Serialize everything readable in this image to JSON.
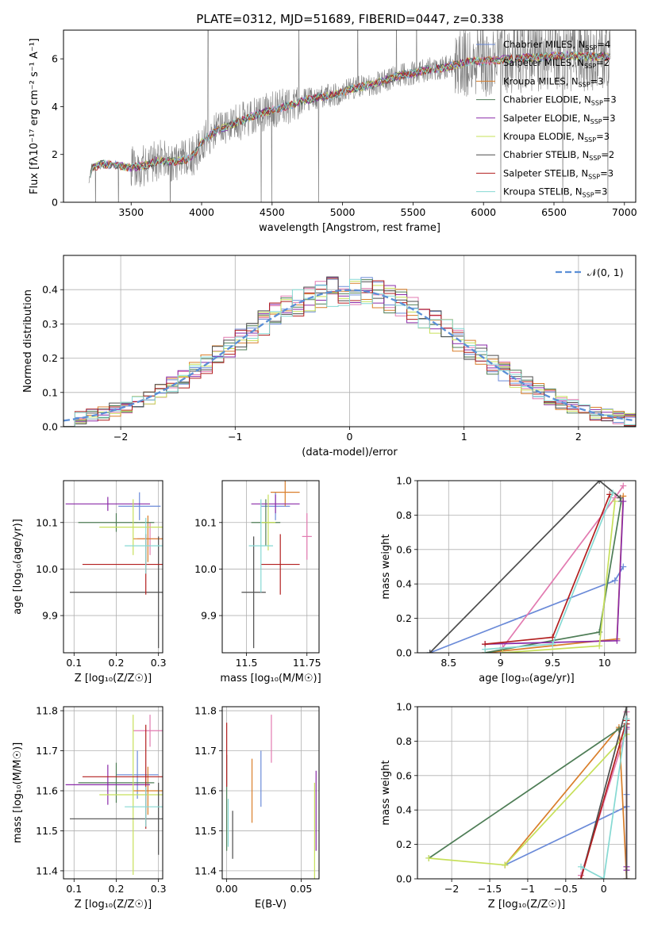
{
  "figure_title": "PLATE=0312, MJD=51689, FIBERID=0447, z=0.338",
  "colors": {
    "models": [
      "#6a8ad8",
      "#e27ab0",
      "#d97e2a",
      "#4e7d56",
      "#8a2aa8",
      "#c7e05a",
      "#4d4d4d",
      "#b21f1f",
      "#86d9d3"
    ],
    "data_spectrum": "#7f7f7f",
    "normal_curve": "#5b8fd6",
    "grid": "#b0b0b0"
  },
  "chart_data": [
    {
      "id": "spectrum",
      "type": "line",
      "title": "PLATE=0312, MJD=51689, FIBERID=0447, z=0.338",
      "xlabel": "wavelength [Angstrom, rest frame]",
      "ylabel": "Flux [fλ10⁻¹⁷ erg cm⁻² s⁻¹ A⁻¹]",
      "xlim": [
        3020,
        7080
      ],
      "ylim": [
        0,
        7.2
      ],
      "xticks": [
        3500,
        4000,
        4500,
        5000,
        5500,
        6000,
        6500,
        7000
      ],
      "yticks": [
        0,
        2,
        4,
        6
      ],
      "grid": false,
      "legend_position": "right",
      "legend": [
        {
          "label": "Chabrier MILES, N",
          "sub": "SSP",
          "suffix": "=4"
        },
        {
          "label": "Salpeter MILES, N",
          "sub": "SSP",
          "suffix": "=2"
        },
        {
          "label": "Kroupa MILES, N",
          "sub": "SSP",
          "suffix": "=3"
        },
        {
          "label": "Chabrier ELODIE, N",
          "sub": "SSP",
          "suffix": "=3"
        },
        {
          "label": "Salpeter ELODIE, N",
          "sub": "SSP",
          "suffix": "=3"
        },
        {
          "label": "Kroupa ELODIE, N",
          "sub": "SSP",
          "suffix": "=3"
        },
        {
          "label": "Chabrier STELIB, N",
          "sub": "SSP",
          "suffix": "=2"
        },
        {
          "label": "Salpeter STELIB, N",
          "sub": "SSP",
          "suffix": "=3"
        },
        {
          "label": "Kroupa STELIB, N",
          "sub": "SSP",
          "suffix": "=3"
        }
      ],
      "continuum": {
        "x": [
          3200,
          3220,
          3300,
          3400,
          3500,
          3600,
          3700,
          3800,
          3900,
          3950,
          4000,
          4100,
          4200,
          4300,
          4400,
          4500,
          4600,
          4700,
          4800,
          4900,
          5000,
          5100,
          5200,
          5300,
          5400,
          5500,
          5600,
          5700,
          5800,
          5900,
          6000,
          6100,
          6200,
          6300,
          6400,
          6500,
          6600,
          6700,
          6800,
          6900
        ],
        "y": [
          0.95,
          1.45,
          1.6,
          1.55,
          1.45,
          1.55,
          1.75,
          1.7,
          1.8,
          2.0,
          2.5,
          3.0,
          3.2,
          3.45,
          3.7,
          3.85,
          4.0,
          4.2,
          4.35,
          4.45,
          4.6,
          4.8,
          4.9,
          5.1,
          5.3,
          5.4,
          5.55,
          5.6,
          5.75,
          5.9,
          5.9,
          5.95,
          6.0,
          6.05,
          6.05,
          6.1,
          6.15,
          6.1,
          6.1,
          6.1
        ]
      },
      "data_noise_amplitude": [
        {
          "x_from": 3200,
          "x_to": 3500,
          "amp": 0.15
        },
        {
          "x_from": 3500,
          "x_to": 4000,
          "amp": 0.9
        },
        {
          "x_from": 4000,
          "x_to": 4700,
          "amp": 0.8
        },
        {
          "x_from": 4700,
          "x_to": 5800,
          "amp": 0.5
        },
        {
          "x_from": 5800,
          "x_to": 6900,
          "amp": 1.5
        }
      ]
    },
    {
      "id": "residuals",
      "type": "bar",
      "xlabel": "(data-model)/error",
      "ylabel": "Normed distribution",
      "xlim": [
        -2.5,
        2.5
      ],
      "ylim": [
        0,
        0.5
      ],
      "xticks": [
        -2,
        -1,
        0,
        1,
        2
      ],
      "yticks": [
        0.0,
        0.1,
        0.2,
        0.3,
        0.4
      ],
      "grid": true,
      "legend_position": "top-right",
      "reference_curve": {
        "label": "𝒩(0, 1)",
        "mean": 0,
        "sigma": 1
      },
      "bins": {
        "start": -2.5,
        "width": 0.1,
        "count": 50
      },
      "series_jitter_seed": 7,
      "series_jitter_amp": 0.045
    },
    {
      "id": "age_vs_Z",
      "type": "scatter",
      "xlabel": "Z [log₁₀(Z/Z☉)]",
      "ylabel": "age  [log₁₀(age/yr)]",
      "xlim": [
        0.075,
        0.31
      ],
      "ylim": [
        9.82,
        10.19
      ],
      "xticks": [
        0.1,
        0.2,
        0.3
      ],
      "yticks": [
        9.9,
        10.0,
        10.1
      ],
      "grid": true,
      "crosses": [
        {
          "series": 0,
          "x": 0.255,
          "y": 10.135,
          "xerr": 0.05,
          "yerr": 0.03
        },
        {
          "series": 1,
          "x": 0.28,
          "y": 10.065,
          "xerr": 0.03,
          "yerr": 0.035
        },
        {
          "series": 2,
          "x": 0.275,
          "y": 10.065,
          "xerr": 0.035,
          "yerr": 0.05
        },
        {
          "series": 3,
          "x": 0.2,
          "y": 10.1,
          "xerr": 0.09,
          "yerr": 0.02
        },
        {
          "series": 4,
          "x": 0.18,
          "y": 10.14,
          "xerr": 0.1,
          "yerr": 0.015
        },
        {
          "series": 5,
          "x": 0.24,
          "y": 10.09,
          "xerr": 0.08,
          "yerr": 0.06
        },
        {
          "series": 6,
          "x": 0.3,
          "y": 9.95,
          "xerr": 0.21,
          "yerr": 0.12
        },
        {
          "series": 7,
          "x": 0.27,
          "y": 10.01,
          "xerr": 0.15,
          "yerr": 0.065
        },
        {
          "series": 8,
          "x": 0.27,
          "y": 10.05,
          "xerr": 0.05,
          "yerr": 0.06
        }
      ]
    },
    {
      "id": "age_vs_mass",
      "type": "scatter",
      "xlabel": "mass [log₁₀(M/M☉)]",
      "ylabel": "",
      "xlim": [
        11.4,
        11.8
      ],
      "ylim": [
        9.82,
        10.19
      ],
      "xticks": [
        11.5,
        11.75
      ],
      "yticks": [
        9.9,
        10.0,
        10.1
      ],
      "grid": true,
      "crosses": [
        {
          "series": 0,
          "x": 11.62,
          "y": 10.135,
          "xerr": 0.06,
          "yerr": 0.03
        },
        {
          "series": 1,
          "x": 11.75,
          "y": 10.07,
          "xerr": 0.02,
          "yerr": 0.05
        },
        {
          "series": 2,
          "x": 11.66,
          "y": 10.165,
          "xerr": 0.06,
          "yerr": 0.03
        },
        {
          "series": 3,
          "x": 11.58,
          "y": 10.1,
          "xerr": 0.06,
          "yerr": 0.05
        },
        {
          "series": 4,
          "x": 11.62,
          "y": 10.14,
          "xerr": 0.1,
          "yerr": 0.02
        },
        {
          "series": 5,
          "x": 11.59,
          "y": 10.1,
          "xerr": 0.03,
          "yerr": 0.06
        },
        {
          "series": 6,
          "x": 11.53,
          "y": 9.95,
          "xerr": 0.05,
          "yerr": 0.12
        },
        {
          "series": 7,
          "x": 11.64,
          "y": 10.01,
          "xerr": 0.08,
          "yerr": 0.065
        },
        {
          "series": 8,
          "x": 11.56,
          "y": 10.05,
          "xerr": 0.05,
          "yerr": 0.1
        }
      ]
    },
    {
      "id": "mass_weight_vs_age",
      "type": "line",
      "xlabel": "age  [log₁₀(age/yr)]",
      "ylabel": "mass weight",
      "xlim": [
        8.2,
        10.3
      ],
      "ylim": [
        0,
        1.0
      ],
      "xticks": [
        8.5,
        9.0,
        9.5,
        10.0
      ],
      "yticks": [
        0.0,
        0.2,
        0.4,
        0.6,
        0.8,
        1.0
      ],
      "grid": true,
      "series": [
        {
          "x": [
            8.32,
            10.1,
            10.18
          ],
          "y": [
            0.0,
            0.42,
            0.5
          ]
        },
        {
          "x": [
            9.02,
            10.1,
            10.18
          ],
          "y": [
            0.03,
            0.9,
            0.97
          ]
        },
        {
          "x": [
            8.85,
            10.12,
            10.18
          ],
          "y": [
            0.0,
            0.08,
            0.91
          ]
        },
        {
          "x": [
            8.85,
            9.95,
            10.16
          ],
          "y": [
            0.0,
            0.12,
            0.88
          ]
        },
        {
          "x": [
            8.85,
            10.12,
            10.18
          ],
          "y": [
            0.05,
            0.07,
            0.88
          ]
        },
        {
          "x": [
            9.02,
            9.95,
            10.1
          ],
          "y": [
            0.0,
            0.04,
            0.88
          ]
        },
        {
          "x": [
            8.32,
            9.95,
            10.15
          ],
          "y": [
            0.0,
            1.0,
            0.9
          ]
        },
        {
          "x": [
            8.85,
            9.5,
            10.05
          ],
          "y": [
            0.05,
            0.09,
            0.92
          ]
        },
        {
          "x": [
            8.85,
            9.5,
            10.08
          ],
          "y": [
            0.02,
            0.05,
            0.93
          ]
        }
      ]
    },
    {
      "id": "mass_vs_Z",
      "type": "scatter",
      "xlabel": "Z [log₁₀(Z/Z☉)]",
      "ylabel": "mass [log₁₀(M/M☉)]",
      "xlim": [
        0.075,
        0.31
      ],
      "ylim": [
        11.38,
        11.81
      ],
      "xticks": [
        0.1,
        0.2,
        0.3
      ],
      "yticks": [
        11.4,
        11.5,
        11.6,
        11.7,
        11.8
      ],
      "grid": true,
      "crosses": [
        {
          "series": 0,
          "x": 0.25,
          "y": 11.64,
          "xerr": 0.05,
          "yerr": 0.06
        },
        {
          "series": 1,
          "x": 0.28,
          "y": 11.75,
          "xerr": 0.04,
          "yerr": 0.04
        },
        {
          "series": 2,
          "x": 0.275,
          "y": 11.6,
          "xerr": 0.035,
          "yerr": 0.06
        },
        {
          "series": 3,
          "x": 0.2,
          "y": 11.62,
          "xerr": 0.09,
          "yerr": 0.05
        },
        {
          "series": 4,
          "x": 0.18,
          "y": 11.615,
          "xerr": 0.1,
          "yerr": 0.05
        },
        {
          "series": 5,
          "x": 0.24,
          "y": 11.59,
          "xerr": 0.08,
          "yerr": 0.2
        },
        {
          "series": 6,
          "x": 0.3,
          "y": 11.53,
          "xerr": 0.21,
          "yerr": 0.09
        },
        {
          "series": 7,
          "x": 0.27,
          "y": 11.635,
          "xerr": 0.15,
          "yerr": 0.13
        },
        {
          "series": 8,
          "x": 0.27,
          "y": 11.56,
          "xerr": 0.05,
          "yerr": 0.05
        }
      ]
    },
    {
      "id": "mass_vs_ebv",
      "type": "scatter",
      "xlabel": "E(B-V)",
      "ylabel": "",
      "xlim": [
        -0.003,
        0.062
      ],
      "ylim": [
        11.38,
        11.81
      ],
      "xticks": [
        0.0,
        0.05
      ],
      "yticks": [
        11.4,
        11.5,
        11.6,
        11.7,
        11.8
      ],
      "grid": true,
      "crosses": [
        {
          "series": 0,
          "x": 0.023,
          "y": 11.63,
          "xerr": 0.0,
          "yerr": 0.07
        },
        {
          "series": 1,
          "x": 0.03,
          "y": 11.73,
          "xerr": 0.0,
          "yerr": 0.06
        },
        {
          "series": 2,
          "x": 0.017,
          "y": 11.6,
          "xerr": 0.0,
          "yerr": 0.08
        },
        {
          "series": 3,
          "x": 0.0,
          "y": 11.57,
          "xerr": 0.0,
          "yerr": 0.12
        },
        {
          "series": 4,
          "x": 0.06,
          "y": 11.55,
          "xerr": 0.0,
          "yerr": 0.1
        },
        {
          "series": 5,
          "x": 0.059,
          "y": 11.5,
          "xerr": 0.0,
          "yerr": 0.12
        },
        {
          "series": 6,
          "x": 0.004,
          "y": 11.49,
          "xerr": 0.0,
          "yerr": 0.06
        },
        {
          "series": 7,
          "x": 0.0,
          "y": 11.69,
          "xerr": 0.0,
          "yerr": 0.08
        },
        {
          "series": 8,
          "x": 0.001,
          "y": 11.52,
          "xerr": 0.0,
          "yerr": 0.06
        }
      ]
    },
    {
      "id": "mass_weight_vs_Z",
      "type": "line",
      "xlabel": "Z [log₁₀(Z/Z☉)]",
      "ylabel": "mass weight",
      "xlim": [
        -2.45,
        0.42
      ],
      "ylim": [
        0,
        1.0
      ],
      "xticks": [
        -2.0,
        -1.5,
        -1.0,
        -0.5,
        0.0
      ],
      "yticks": [
        0.0,
        0.2,
        0.4,
        0.6,
        0.8,
        1.0
      ],
      "grid": true,
      "series": [
        {
          "x": [
            -1.3,
            0.3,
            0.3
          ],
          "y": [
            0.08,
            0.42,
            0.49
          ]
        },
        {
          "x": [
            -0.3,
            0.3,
            0.3
          ],
          "y": [
            0.02,
            0.87,
            0.97
          ]
        },
        {
          "x": [
            -1.3,
            0.2,
            0.3
          ],
          "y": [
            0.08,
            0.88,
            0.0
          ]
        },
        {
          "x": [
            -2.3,
            0.2,
            0.3
          ],
          "y": [
            0.12,
            0.87,
            0.9
          ]
        },
        {
          "x": [
            0.3,
            0.3,
            0.3
          ],
          "y": [
            0.05,
            0.07,
            0.88
          ]
        },
        {
          "x": [
            -2.3,
            -1.3,
            0.3
          ],
          "y": [
            0.12,
            0.08,
            0.84
          ]
        },
        {
          "x": [
            -0.3,
            0.3,
            0.3
          ],
          "y": [
            0.0,
            1.0,
            0.0
          ]
        },
        {
          "x": [
            -0.3,
            0.3,
            0.3
          ],
          "y": [
            0.0,
            0.92,
            0.9
          ]
        },
        {
          "x": [
            -0.3,
            0.0,
            0.3
          ],
          "y": [
            0.07,
            0.0,
            0.93
          ]
        }
      ]
    }
  ]
}
